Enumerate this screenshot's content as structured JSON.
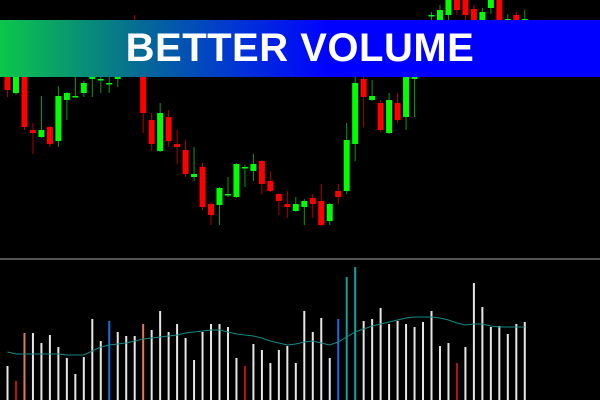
{
  "banner": {
    "title": "BETTER VOLUME"
  },
  "colors": {
    "background": "#000000",
    "bull": "#00ff00",
    "bear": "#ff0000",
    "bull_wick": "#0a9a0a",
    "bear_wick": "#b00000",
    "separator": "#555555",
    "ma_line": "#138a86",
    "volume_colors": {
      "white": "#e6e6e6",
      "red": "#c01010",
      "orange": "#e07a50",
      "blue": "#1a6fe0",
      "teal": "#159e9a"
    }
  },
  "chart_data": [
    {
      "type": "candlestick",
      "title": "",
      "grid": false,
      "candles_ohlc": [
        [
          183,
          190,
          163,
          170
        ],
        [
          167,
          190,
          165,
          183
        ],
        [
          183,
          190,
          130,
          133
        ],
        [
          130,
          137,
          106,
          127
        ],
        [
          123,
          164,
          122,
          130
        ],
        [
          133,
          134,
          113,
          116
        ],
        [
          119,
          174,
          113,
          164
        ],
        [
          160,
          168,
          140,
          167
        ],
        [
          164,
          183,
          163,
          164
        ],
        [
          167,
          179,
          163,
          177
        ],
        [
          181,
          190,
          163,
          183
        ],
        [
          181,
          188,
          167,
          181
        ],
        [
          177,
          185,
          167,
          177
        ],
        [
          181,
          190,
          173,
          183
        ],
        [
          188,
          205,
          185,
          200
        ],
        [
          215,
          245,
          195,
          200
        ],
        [
          200,
          205,
          127,
          147
        ],
        [
          140,
          147,
          109,
          116
        ],
        [
          109,
          157,
          108,
          147
        ],
        [
          143,
          150,
          113,
          119
        ],
        [
          116,
          130,
          96,
          113
        ],
        [
          110,
          120,
          83,
          86
        ],
        [
          83,
          113,
          79,
          86
        ],
        [
          93,
          97,
          50,
          53
        ],
        [
          56,
          58,
          35,
          45
        ],
        [
          55,
          73,
          35,
          72
        ],
        [
          66,
          83,
          63,
          66
        ],
        [
          63,
          97,
          62,
          96
        ],
        [
          93,
          95,
          73,
          93
        ],
        [
          89,
          106,
          79,
          96
        ],
        [
          99,
          100,
          66,
          76
        ],
        [
          79,
          89,
          68,
          69
        ],
        [
          66,
          67,
          45,
          59
        ],
        [
          56,
          69,
          42,
          53
        ],
        [
          49,
          63,
          48,
          56
        ],
        [
          53,
          61,
          35,
          59
        ],
        [
          62,
          66,
          42,
          56
        ],
        [
          59,
          76,
          34,
          35
        ],
        [
          39,
          57,
          35,
          56
        ],
        [
          69,
          76,
          56,
          63
        ],
        [
          69,
          137,
          66,
          120
        ],
        [
          116,
          183,
          99,
          177
        ],
        [
          181,
          185,
          133,
          163
        ],
        [
          160,
          180,
          159,
          164
        ],
        [
          157,
          160,
          128,
          130
        ],
        [
          127,
          167,
          126,
          160
        ],
        [
          157,
          167,
          137,
          140
        ],
        [
          143,
          190,
          130,
          183
        ],
        [
          181,
          205,
          143,
          200
        ],
        [
          200,
          232,
          195,
          225
        ],
        [
          245,
          248,
          230,
          245
        ],
        [
          238,
          255,
          230,
          250
        ],
        [
          245,
          262,
          240,
          262
        ],
        [
          262,
          262,
          245,
          250
        ],
        [
          262,
          262,
          240,
          245
        ],
        [
          251,
          255,
          235,
          240
        ],
        [
          240,
          252,
          235,
          248
        ],
        [
          252,
          262,
          246,
          262
        ],
        [
          262,
          262,
          235,
          240
        ],
        [
          241,
          246,
          236,
          241
        ],
        [
          245,
          248,
          236,
          240
        ],
        [
          241,
          250,
          236,
          241
        ]
      ]
    },
    {
      "type": "bar",
      "title": "",
      "grid": false,
      "volume": [
        34,
        19,
        67,
        67,
        57,
        65,
        53,
        42,
        26,
        43,
        81,
        59,
        79,
        68,
        64,
        64,
        76,
        70,
        89,
        68,
        76,
        62,
        40,
        68,
        76,
        76,
        73,
        42,
        34,
        56,
        50,
        37,
        50,
        54,
        37,
        89,
        68,
        82,
        42,
        81,
        123,
        133,
        79,
        81,
        92,
        76,
        79,
        76,
        73,
        78,
        89,
        54,
        57,
        37,
        53,
        117,
        93,
        73,
        74,
        66,
        76,
        78
      ],
      "volume_color": [
        "white",
        "red",
        "orange",
        "white",
        "white",
        "white",
        "white",
        "white",
        "white",
        "white",
        "white",
        "white",
        "blue",
        "white",
        "white",
        "white",
        "orange",
        "white",
        "white",
        "white",
        "white",
        "white",
        "white",
        "white",
        "white",
        "white",
        "white",
        "white",
        "red",
        "white",
        "white",
        "white",
        "white",
        "white",
        "white",
        "white",
        "white",
        "white",
        "white",
        "blue",
        "teal",
        "teal",
        "white",
        "white",
        "white",
        "white",
        "white",
        "white",
        "white",
        "white",
        "white",
        "white",
        "white",
        "red",
        "white",
        "white",
        "white",
        "white",
        "white",
        "white",
        "white",
        "white"
      ],
      "moving_average": [
        48,
        46,
        46,
        46,
        46,
        46,
        46,
        45,
        45,
        45,
        49,
        53,
        55,
        56,
        57,
        59,
        61,
        62,
        63,
        64,
        65,
        67,
        68,
        69,
        70,
        70,
        68,
        66,
        65,
        64,
        62,
        59,
        57,
        55,
        56,
        58,
        59,
        57,
        55,
        58,
        63,
        68,
        71,
        74,
        76,
        78,
        80,
        82,
        83,
        83,
        83,
        82,
        80,
        77,
        75,
        76,
        76,
        74,
        73,
        73,
        73,
        73
      ]
    }
  ]
}
